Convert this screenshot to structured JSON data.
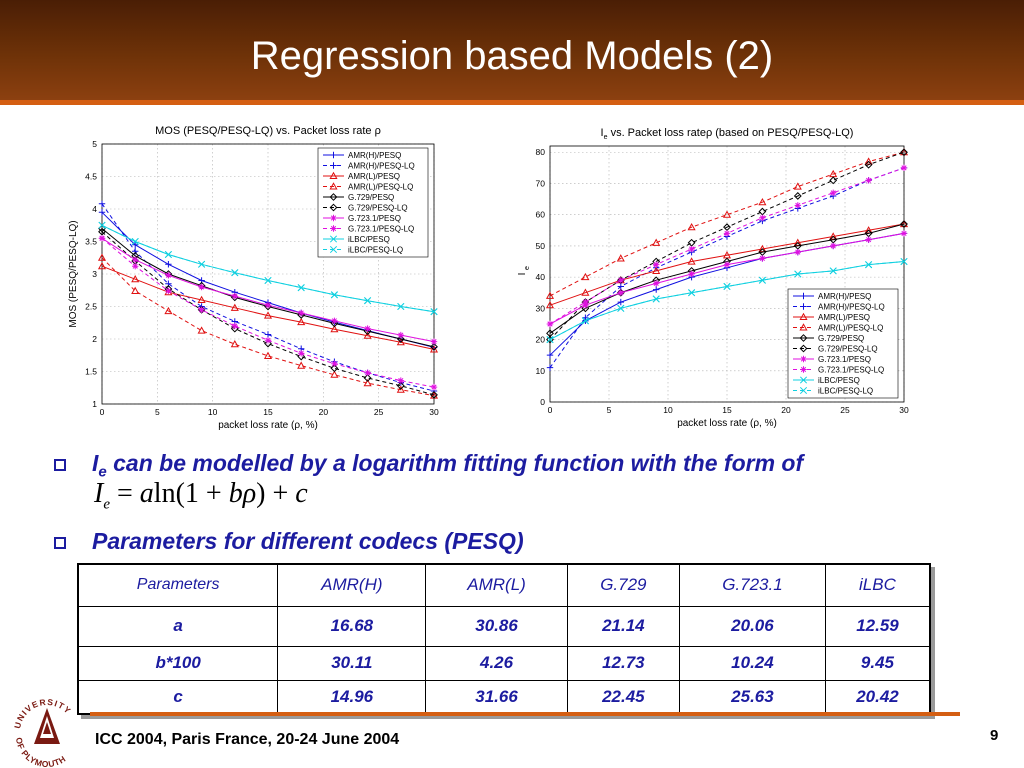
{
  "slide": {
    "title": "Regression based Models (2)",
    "page_number": "9",
    "footer": "ICC 2004, Paris France, 20-24 June 2004"
  },
  "logo": {
    "icon": "university-of-plymouth-seal-icon",
    "text": "UNIVERSITY OF PLYMOUTH",
    "colors": {
      "seal": "#7a1a12"
    }
  },
  "bullets": [
    {
      "prefix": "I",
      "sub": "e",
      "text": " can be modelled by a logarithm fitting function with the form of"
    },
    {
      "text": "Parameters for different codecs (PESQ)"
    }
  ],
  "formula": {
    "lhs": "I",
    "lhs_sub": "e",
    "eq": "=",
    "a": "a",
    "ln": "ln",
    "open": "(1",
    "plus1": "+",
    "b": "b",
    "rho": "ρ",
    "close": ")",
    "plus2": "+",
    "c": "c"
  },
  "table": {
    "headers": [
      "Parameters",
      "AMR(H)",
      "AMR(L)",
      "G.729",
      "G.723.1",
      "iLBC"
    ],
    "rows": [
      [
        "a",
        "16.68",
        "30.86",
        "21.14",
        "20.06",
        "12.59"
      ],
      [
        "b*100",
        "30.11",
        "4.26",
        "12.73",
        "10.24",
        "9.45"
      ],
      [
        "c",
        "14.96",
        "31.66",
        "22.45",
        "25.63",
        "20.42"
      ]
    ]
  },
  "colors": {
    "title_bar": "#6e3208",
    "accent_rule": "#d45e12",
    "bullet_text": "#1c1ca0"
  },
  "chart_data": [
    {
      "type": "line",
      "title": "MOS (PESQ/PESQ-LQ) vs. Packet loss rate ρ",
      "xlabel": "packet loss rate (ρ, %)",
      "ylabel": "MOS (PESQ/PESQ-LQ)",
      "xlim": [
        0,
        30
      ],
      "ylim": [
        1,
        5
      ],
      "xticks": [
        "0",
        "5",
        "10",
        "15",
        "20",
        "25",
        "30"
      ],
      "yticks": [
        "1",
        "1.5",
        "2",
        "2.5",
        "3",
        "3.5",
        "4",
        "4.5",
        "5"
      ],
      "grid": true,
      "legend_position": "top-right",
      "x": [
        0,
        3,
        6,
        9,
        12,
        15,
        18,
        21,
        24,
        27,
        30
      ],
      "series": [
        {
          "name": "AMR(H)/PESQ",
          "color": "#1010e0",
          "dash": false,
          "marker": "plus",
          "values": [
            3.95,
            3.45,
            3.15,
            2.9,
            2.72,
            2.56,
            2.4,
            2.26,
            2.13,
            2.0,
            1.87
          ]
        },
        {
          "name": "AMR(H)/PESQ-LQ",
          "color": "#1010e0",
          "dash": true,
          "marker": "plus",
          "values": [
            4.08,
            3.35,
            2.85,
            2.5,
            2.27,
            2.07,
            1.85,
            1.65,
            1.48,
            1.33,
            1.2
          ]
        },
        {
          "name": "AMR(L)/PESQ",
          "color": "#e01010",
          "dash": false,
          "marker": "triangle",
          "values": [
            3.12,
            2.92,
            2.72,
            2.6,
            2.48,
            2.36,
            2.26,
            2.15,
            2.05,
            1.95,
            1.84
          ]
        },
        {
          "name": "AMR(L)/PESQ-LQ",
          "color": "#e01010",
          "dash": true,
          "marker": "triangle",
          "values": [
            3.25,
            2.74,
            2.43,
            2.13,
            1.92,
            1.74,
            1.59,
            1.45,
            1.32,
            1.22,
            1.13
          ]
        },
        {
          "name": "G.729/PESQ",
          "color": "#000000",
          "dash": false,
          "marker": "diamond",
          "values": [
            3.7,
            3.28,
            3.0,
            2.82,
            2.64,
            2.5,
            2.37,
            2.24,
            2.12,
            2.0,
            1.88
          ]
        },
        {
          "name": "G.729/PESQ-LQ",
          "color": "#000000",
          "dash": true,
          "marker": "diamond",
          "values": [
            3.65,
            3.2,
            2.77,
            2.45,
            2.16,
            1.93,
            1.73,
            1.55,
            1.4,
            1.28,
            1.14
          ]
        },
        {
          "name": "G.723.1/PESQ",
          "color": "#e010e0",
          "dash": false,
          "marker": "star",
          "values": [
            3.55,
            3.22,
            2.98,
            2.8,
            2.66,
            2.52,
            2.4,
            2.28,
            2.16,
            2.06,
            1.96
          ]
        },
        {
          "name": "G.723.1/PESQ-LQ",
          "color": "#e010e0",
          "dash": true,
          "marker": "star",
          "values": [
            3.55,
            3.12,
            2.74,
            2.45,
            2.2,
            1.98,
            1.78,
            1.62,
            1.48,
            1.36,
            1.26
          ]
        },
        {
          "name": "iLBC/PESQ",
          "color": "#10d0e0",
          "dash": false,
          "marker": "x",
          "values": [
            3.75,
            3.5,
            3.3,
            3.15,
            3.02,
            2.9,
            2.79,
            2.68,
            2.59,
            2.5,
            2.42
          ]
        },
        {
          "name": "iLBC/PESQ-LQ",
          "color": "#10d0e0",
          "dash": true,
          "marker": "x",
          "values": [
            3.75,
            3.5,
            3.3,
            3.15,
            3.02,
            2.9,
            2.79,
            2.68,
            2.59,
            2.5,
            2.42
          ]
        }
      ]
    },
    {
      "type": "line",
      "title": "I",
      "title_sub": "e",
      "title_rest": " vs. Packet loss rateρ (based on PESQ/PESQ-LQ)",
      "xlabel": "packet loss rate (ρ, %)",
      "ylabel": "I",
      "ylabel_sub": "e",
      "xlim": [
        0,
        30
      ],
      "ylim": [
        0,
        82
      ],
      "xticks": [
        "0",
        "5",
        "10",
        "15",
        "20",
        "25",
        "30"
      ],
      "yticks": [
        "0",
        "10",
        "20",
        "30",
        "40",
        "50",
        "60",
        "70",
        "80"
      ],
      "grid": true,
      "legend_position": "bottom-right",
      "x": [
        0,
        3,
        6,
        9,
        12,
        15,
        18,
        21,
        24,
        27,
        30
      ],
      "series": [
        {
          "name": "AMR(H)/PESQ",
          "color": "#1010e0",
          "dash": false,
          "marker": "plus",
          "values": [
            15,
            26,
            32,
            36,
            40,
            43,
            46,
            48,
            50,
            52,
            54
          ]
        },
        {
          "name": "AMR(H)/PESQ-LQ",
          "color": "#1010e0",
          "dash": true,
          "marker": "plus",
          "values": [
            11,
            27,
            37,
            43,
            48,
            53,
            58,
            62,
            66,
            71,
            75
          ]
        },
        {
          "name": "AMR(L)/PESQ",
          "color": "#e01010",
          "dash": false,
          "marker": "triangle",
          "values": [
            31,
            35,
            39,
            42,
            45,
            47,
            49,
            51,
            53,
            55,
            57
          ]
        },
        {
          "name": "AMR(L)/PESQ-LQ",
          "color": "#e01010",
          "dash": true,
          "marker": "triangle",
          "values": [
            34,
            40,
            46,
            51,
            56,
            60,
            64,
            69,
            73,
            77,
            80
          ]
        },
        {
          "name": "G.729/PESQ",
          "color": "#000000",
          "dash": false,
          "marker": "diamond",
          "values": [
            22,
            30,
            35,
            39,
            42,
            45,
            48,
            50,
            52,
            54,
            57
          ]
        },
        {
          "name": "G.729/PESQ-LQ",
          "color": "#000000",
          "dash": true,
          "marker": "diamond",
          "values": [
            20,
            32,
            39,
            45,
            51,
            56,
            61,
            66,
            71,
            76,
            80
          ]
        },
        {
          "name": "G.723.1/PESQ",
          "color": "#e010e0",
          "dash": false,
          "marker": "star",
          "values": [
            25,
            31,
            35,
            38,
            41,
            44,
            46,
            48,
            50,
            52,
            54
          ]
        },
        {
          "name": "G.723.1/PESQ-LQ",
          "color": "#e010e0",
          "dash": true,
          "marker": "star",
          "values": [
            25,
            32,
            39,
            44,
            49,
            54,
            59,
            63,
            67,
            71,
            75
          ]
        },
        {
          "name": "iLBC/PESQ",
          "color": "#10d0e0",
          "dash": false,
          "marker": "x",
          "values": [
            20,
            26,
            30,
            33,
            35,
            37,
            39,
            41,
            42,
            44,
            45
          ]
        },
        {
          "name": "iLBC/PESQ-LQ",
          "color": "#10d0e0",
          "dash": true,
          "marker": "x",
          "values": [
            20,
            26,
            30,
            33,
            35,
            37,
            39,
            41,
            42,
            44,
            45
          ]
        }
      ]
    }
  ]
}
